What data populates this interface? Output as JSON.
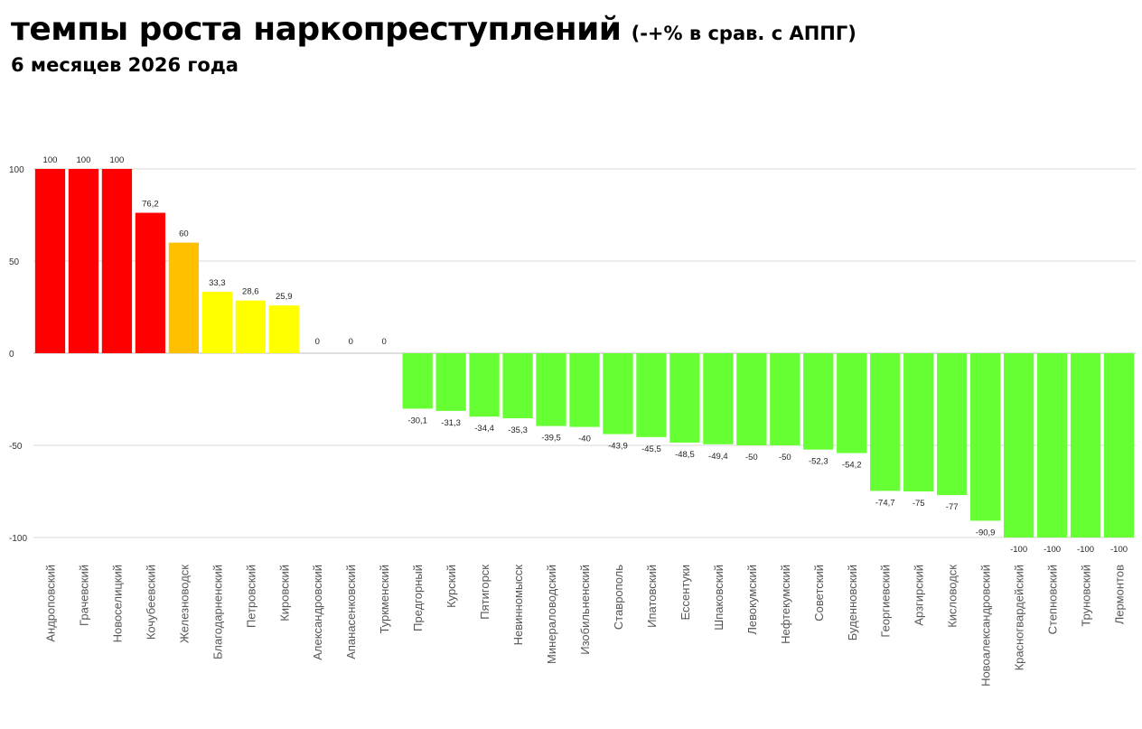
{
  "header": {
    "title": "темпы роста наркопреступлений",
    "title_note": "(-+% в срав. с АППГ)",
    "subtitle": "6 месяцев 2026 года"
  },
  "colors": {
    "red": "#ff0000",
    "orange": "#ffc000",
    "yellow": "#ffff00",
    "green": "#66ff33",
    "grid": "#d9d9d9",
    "axis": "#bfbfbf"
  },
  "chart_data": {
    "type": "bar",
    "title": "",
    "xlabel": "",
    "ylabel": "",
    "ylim": [
      -100,
      100
    ],
    "yticks": [
      100,
      50,
      0,
      -50,
      -100
    ],
    "grid": true,
    "categories": [
      "Андроповский",
      "Грачевский",
      "Новоселицкий",
      "Кочубеевский",
      "Железноводск",
      "Благодарненский",
      "Петровский",
      "Кировский",
      "Александровский",
      "Апанасенковский",
      "Туркменский",
      "Предгорный",
      "Курский",
      "Пятигорск",
      "Невинномысск",
      "Минераловодский",
      "Изобильненский",
      "Ставрополь",
      "Ипатовский",
      "Ессентуки",
      "Шпаковский",
      "Левокумский",
      "Нефтекумский",
      "Советский",
      "Буденновский",
      "Георгиевский",
      "Арзгирский",
      "Кисловодск",
      "Новоалександровский",
      "Красногвардейский",
      "Степновский",
      "Труновский",
      "Лермонтов"
    ],
    "values": [
      100,
      100,
      100,
      76.2,
      60,
      33.3,
      28.6,
      25.9,
      0,
      0,
      0,
      -30.1,
      -31.3,
      -34.4,
      -35.3,
      -39.5,
      -40,
      -43.9,
      -45.5,
      -48.5,
      -49.4,
      -50,
      -50,
      -52.3,
      -54.2,
      -74.7,
      -75,
      -77,
      -90.9,
      -100,
      -100,
      -100,
      -100
    ],
    "value_labels": [
      "100",
      "100",
      "100",
      "76,2",
      "60",
      "33,3",
      "28,6",
      "25,9",
      "0",
      "0",
      "0",
      "-30,1",
      "-31,3",
      "-34,4",
      "-35,3",
      "-39,5",
      "-40",
      "-43,9",
      "-45,5",
      "-48,5",
      "-49,4",
      "-50",
      "-50",
      "-52,3",
      "-54,2",
      "-74,7",
      "-75",
      "-77",
      "-90,9",
      "-100",
      "-100",
      "-100",
      "-100"
    ],
    "bar_colors": [
      "#ff0000",
      "#ff0000",
      "#ff0000",
      "#ff0000",
      "#ffc000",
      "#ffff00",
      "#ffff00",
      "#ffff00",
      "#ffff00",
      "#ffff00",
      "#ffff00",
      "#66ff33",
      "#66ff33",
      "#66ff33",
      "#66ff33",
      "#66ff33",
      "#66ff33",
      "#66ff33",
      "#66ff33",
      "#66ff33",
      "#66ff33",
      "#66ff33",
      "#66ff33",
      "#66ff33",
      "#66ff33",
      "#66ff33",
      "#66ff33",
      "#66ff33",
      "#66ff33",
      "#66ff33",
      "#66ff33",
      "#66ff33",
      "#66ff33"
    ]
  }
}
